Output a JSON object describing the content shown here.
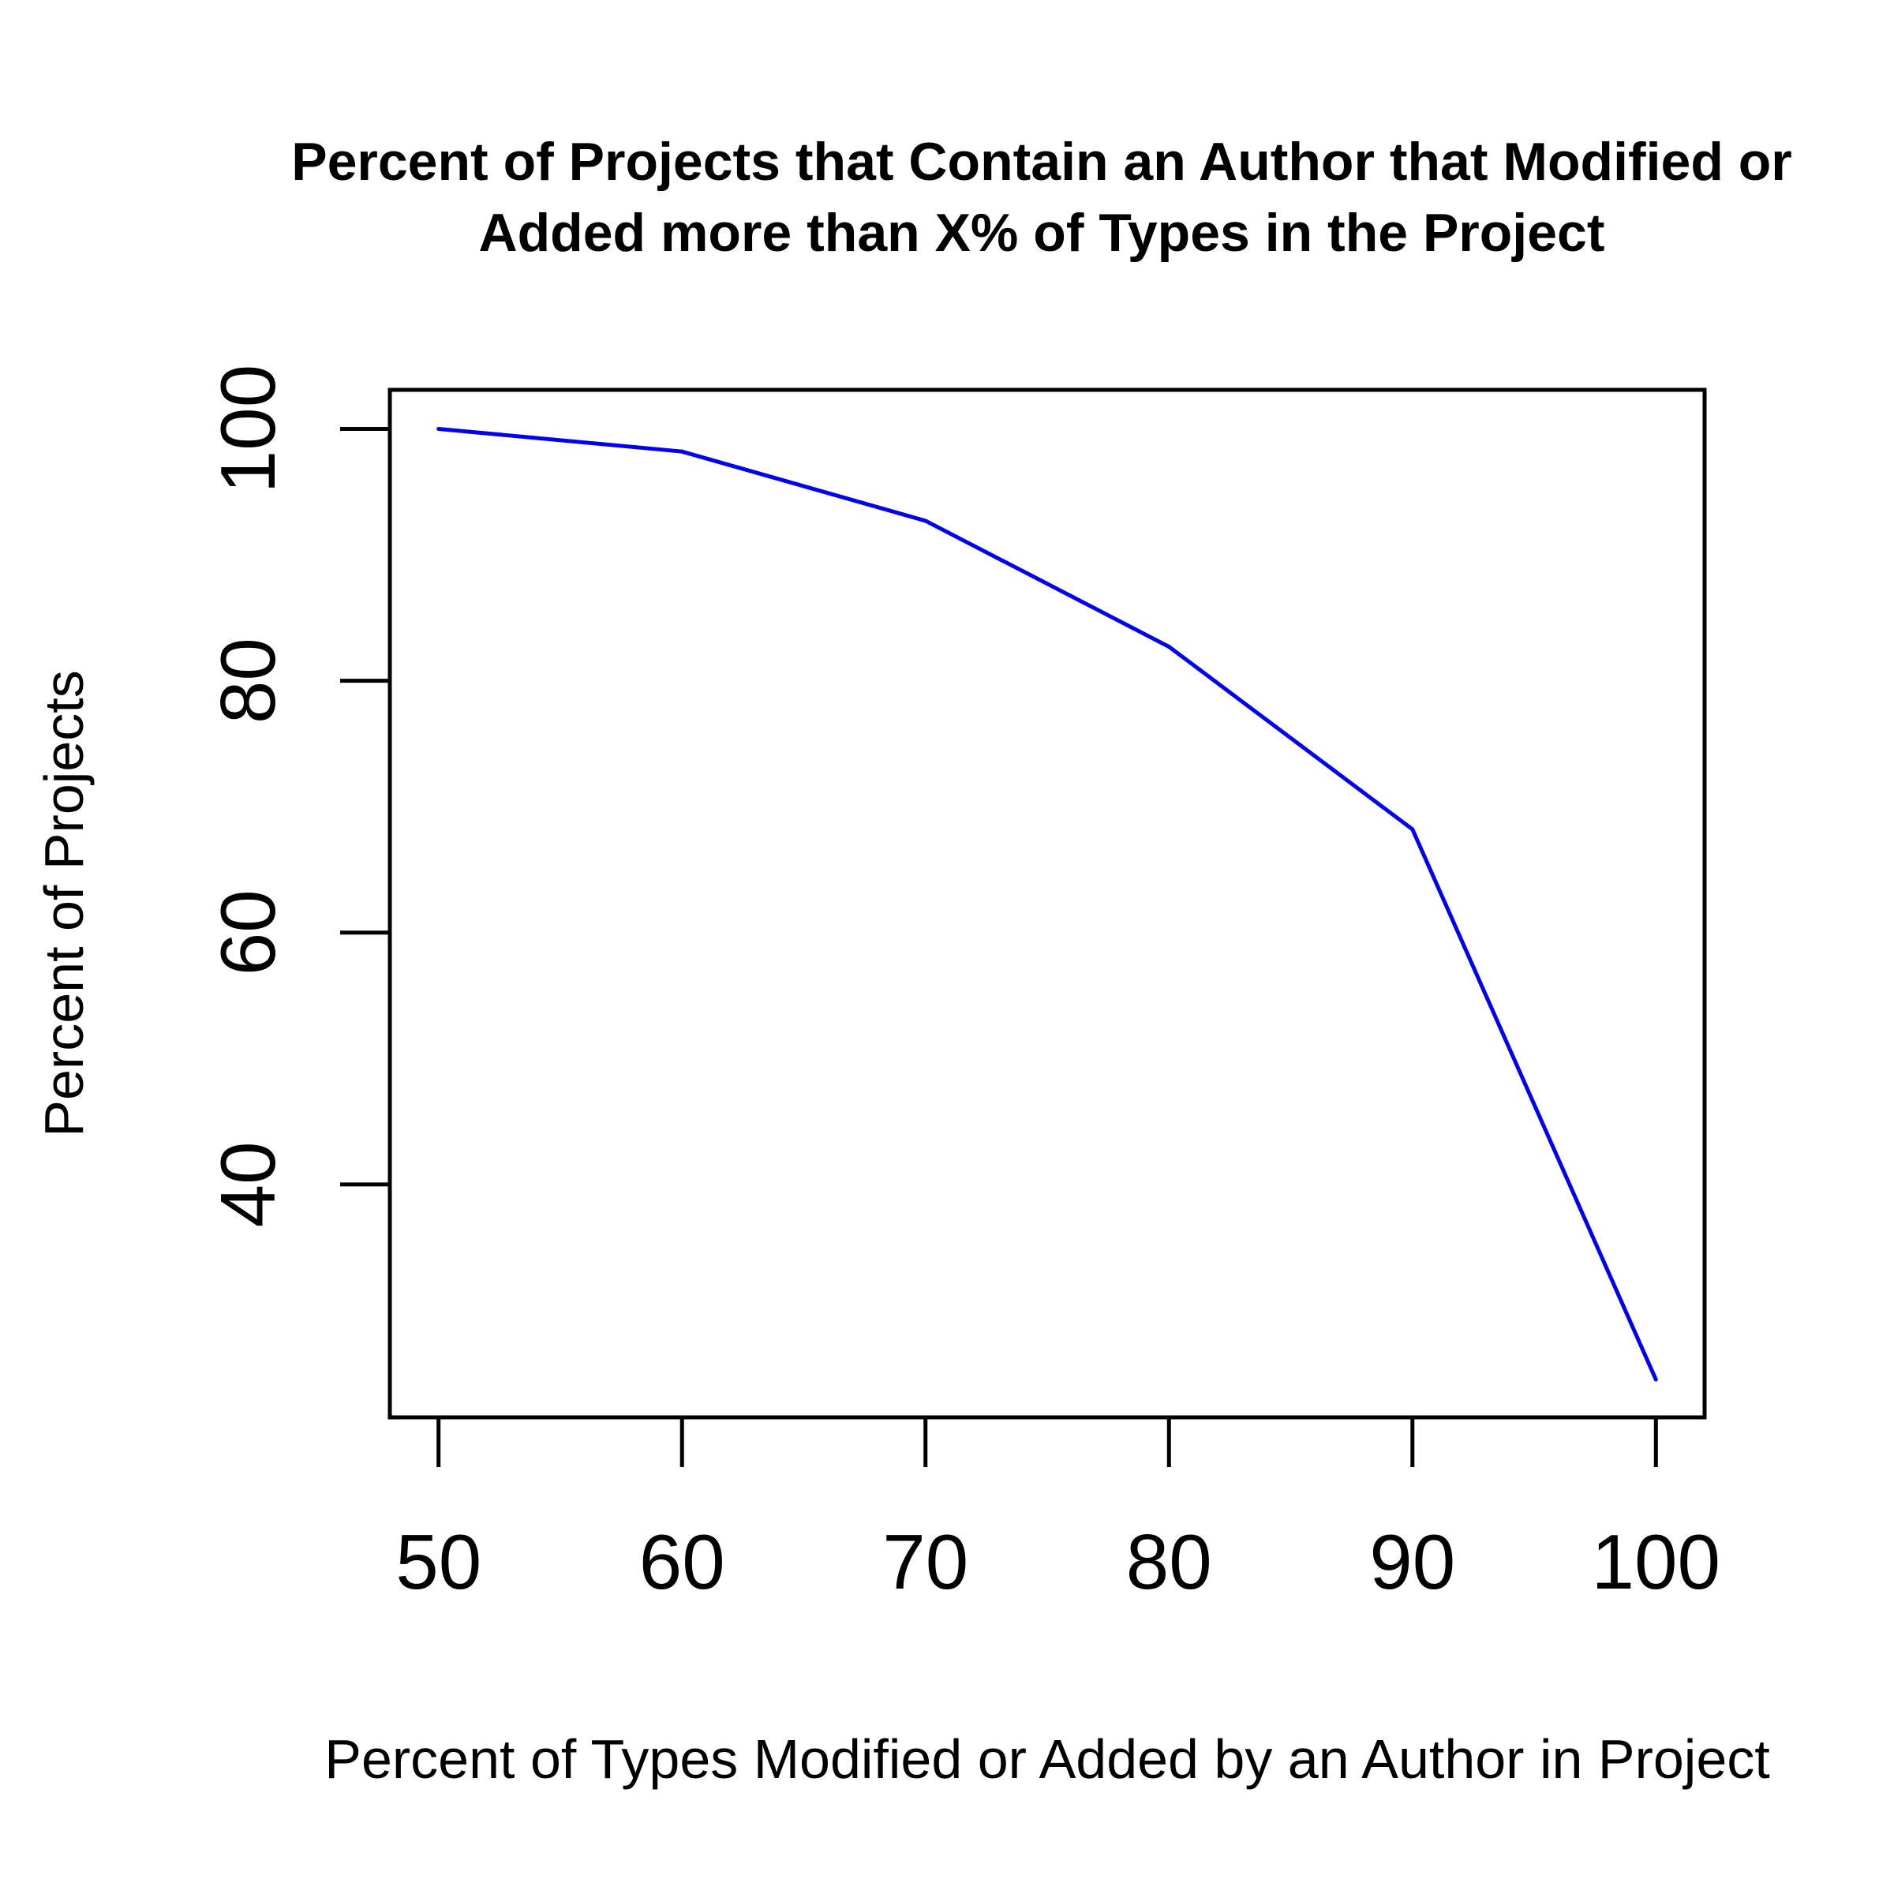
{
  "chart_data": {
    "type": "line",
    "title_lines": [
      "Percent of Projects that Contain an Author that Modified or",
      "Added more than X% of Types in the Project"
    ],
    "xlabel": "Percent of Types Modified or Added by an Author in Project",
    "ylabel": "Percent of Projects",
    "x": [
      50,
      60,
      70,
      80,
      90,
      100
    ],
    "series": [
      {
        "values": [
          100,
          98.2,
          92.7,
          82.7,
          68.2,
          24.5
        ],
        "color": "#0000ee"
      }
    ],
    "xticks": [
      "50",
      "60",
      "70",
      "80",
      "90",
      "100"
    ],
    "yticks": [
      "40",
      "60",
      "80",
      "100"
    ],
    "xlim": [
      48,
      102
    ],
    "ylim": [
      21.5,
      103.1
    ],
    "grid": false,
    "legend": "none"
  }
}
